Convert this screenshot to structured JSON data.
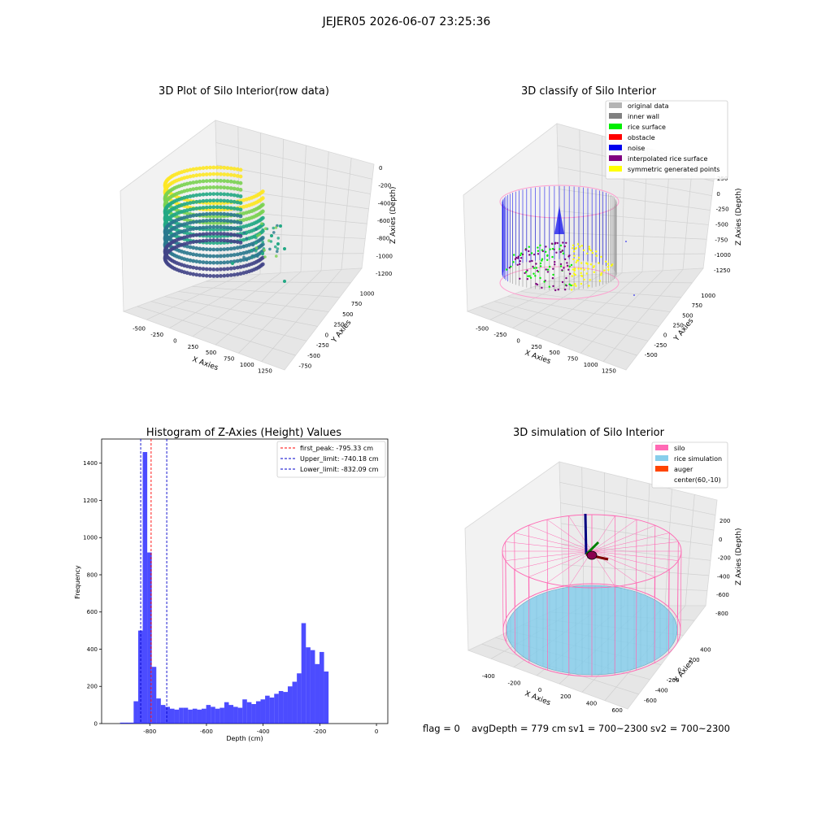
{
  "suptitle": "JEJER05 2026-06-07 23:25:36",
  "footer": {
    "flag": "flag = 0",
    "avg_depth": "avgDepth = 779 cm",
    "sv1": "sv1 = 700~2300",
    "sv2": "sv2 = 700~2300"
  },
  "chart_data": [
    {
      "type": "scatter",
      "title": "3D Plot of Silo Interior(row data)",
      "xlabel": "X Axies",
      "ylabel": "Y Axies",
      "zlabel": "Z Axies (Depth)",
      "x_ticks": [
        "-500",
        "-250",
        "0",
        "250",
        "500",
        "750",
        "1000",
        "1250"
      ],
      "y_ticks": [
        "-750",
        "-500",
        "-250",
        "0",
        "250",
        "500",
        "750",
        "1000"
      ],
      "z_ticks": [
        "0",
        "-200",
        "-400",
        "-600",
        "-800",
        "-1000",
        "-1200"
      ],
      "xlim": [
        -550,
        1350
      ],
      "ylim": [
        -800,
        1050
      ],
      "zlim": [
        -1300,
        100
      ],
      "colormap": "viridis",
      "grid": true
    },
    {
      "type": "scatter",
      "title": "3D classify of Silo Interior",
      "xlabel": "X Axies",
      "ylabel": "Y Axies",
      "zlabel": "Z Axies (Depth)",
      "x_ticks": [
        "-500",
        "-250",
        "0",
        "250",
        "500",
        "750",
        "1000",
        "1250"
      ],
      "y_ticks": [
        "-500",
        "-250",
        "0",
        "250",
        "500",
        "750",
        "1000"
      ],
      "z_ticks": [
        "250",
        "0",
        "-250",
        "-500",
        "-750",
        "-1000",
        "-1250"
      ],
      "legend": [
        {
          "label": "original data",
          "color": "#b4b4b4"
        },
        {
          "label": "inner wall",
          "color": "#808080"
        },
        {
          "label": "rice surface",
          "color": "#00ee00"
        },
        {
          "label": "obstacle",
          "color": "#ff0000"
        },
        {
          "label": "noise",
          "color": "#0000ee"
        },
        {
          "label": "interpolated rice surface",
          "color": "#800080"
        },
        {
          "label": "symmetric generated points",
          "color": "#ffff00"
        }
      ],
      "legend_position": "top-right",
      "grid": true
    },
    {
      "type": "bar",
      "title": "Histogram of Z-Axies (Height) Values",
      "xlabel": "Depth (cm)",
      "ylabel": "Frequency",
      "xlim": [
        -970,
        40
      ],
      "ylim": [
        0,
        1530
      ],
      "x_ticks": [
        -800,
        -600,
        -400,
        -200,
        0
      ],
      "y_ticks": [
        0,
        200,
        400,
        600,
        800,
        1000,
        1200,
        1400
      ],
      "bin_width": 16,
      "bin_edges_start": -905,
      "values": [
        5,
        5,
        5,
        120,
        500,
        1460,
        920,
        305,
        135,
        100,
        90,
        80,
        75,
        85,
        85,
        75,
        80,
        75,
        80,
        100,
        90,
        80,
        85,
        115,
        100,
        90,
        85,
        130,
        115,
        105,
        120,
        130,
        150,
        140,
        160,
        175,
        170,
        200,
        225,
        270,
        540,
        410,
        395,
        320,
        385,
        280
      ],
      "bar_color": "#0000ff",
      "vlines": [
        {
          "label": "first_peak: -795.33 cm",
          "x": -795.33,
          "color": "#ff0000"
        },
        {
          "label": "Upper_limit: -740.18 cm",
          "x": -740.18,
          "color": "#0000cc"
        },
        {
          "label": "Lower_limit: -832.09 cm",
          "x": -832.09,
          "color": "#0000cc"
        }
      ],
      "legend_position": "top-right"
    },
    {
      "type": "scatter",
      "title": "3D simulation of Silo Interior",
      "xlabel": "X Axies",
      "ylabel": "Y Axies",
      "zlabel": "Z Axies (Depth)",
      "x_ticks": [
        "-400",
        "-200",
        "0",
        "200",
        "400",
        "600"
      ],
      "y_ticks": [
        "-600",
        "-400",
        "-200",
        "0",
        "200",
        "400"
      ],
      "z_ticks": [
        "200",
        "0",
        "-200",
        "-400",
        "-600",
        "-800"
      ],
      "legend": [
        {
          "label": "silo",
          "color": "#ff69b4"
        },
        {
          "label": "rice simulation",
          "color": "#87ceeb"
        },
        {
          "label": "auger",
          "color": "#ff4500"
        },
        {
          "label": "center(60,-10)",
          "color": ""
        }
      ],
      "legend_position": "top-right",
      "grid": true
    }
  ]
}
